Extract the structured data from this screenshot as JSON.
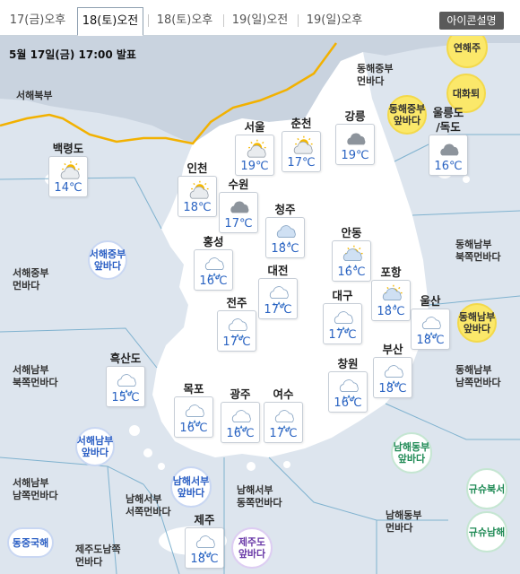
{
  "tabs": [
    {
      "label": "17(금)오후",
      "active": false
    },
    {
      "label": "18(토)오전",
      "active": true
    },
    {
      "label": "18(토)오후",
      "active": false
    },
    {
      "label": "19(일)오전",
      "active": false
    },
    {
      "label": "19(일)오후",
      "active": false
    }
  ],
  "icon_legend_label": "아이콘설명",
  "announcement": "5월 17일(금) 17:00 발표",
  "sea_labels": [
    {
      "id": "seohae-bukbu",
      "text": "서해북부"
    },
    {
      "id": "seohae-jungbu-bukjjok",
      "text": "서해중부\n먼바다"
    },
    {
      "id": "seohae-nambu-bukjjok",
      "text": "서해남부\n북쪽먼바다"
    },
    {
      "id": "seohae-nambu-namjjok",
      "text": "서해남부\n남쪽먼바다"
    },
    {
      "id": "namhae-seobu-seojjok",
      "text": "남해서부\n서쪽먼바다"
    },
    {
      "id": "namhae-seobu-dongjjok",
      "text": "남해서부\n동쪽먼바다"
    },
    {
      "id": "jeju-namjjok",
      "text": "제주도남쪽\n먼바다"
    },
    {
      "id": "namhae-dongbu-meon",
      "text": "남해동부\n먼바다"
    },
    {
      "id": "donghae-jungbu-meon",
      "text": "동해중부\n먼바다"
    },
    {
      "id": "donghae-nambu-bukjjok",
      "text": "동해남부\n북쪽먼바다"
    },
    {
      "id": "donghae-nambu-namjjok",
      "text": "동해남부\n남쪽먼바다"
    }
  ],
  "sea_circles": [
    {
      "id": "yeonhaeju",
      "text": "연해주",
      "color": "yellow"
    },
    {
      "id": "daehwatoe",
      "text": "대화퇴",
      "color": "yellow"
    },
    {
      "id": "donghae-jungbu-anbada",
      "text": "동해중부\n앞바다",
      "color": "yellow"
    },
    {
      "id": "donghae-nambu-anbada",
      "text": "동해남부\n앞바다",
      "color": "yellow"
    },
    {
      "id": "seohae-jungbu-anbada",
      "text": "서해중부\n앞바다",
      "color": "blue"
    },
    {
      "id": "seohae-nambu-anbada",
      "text": "서해남부\n앞바다",
      "color": "blue"
    },
    {
      "id": "namhae-seobu-anbada",
      "text": "남해서부\n앞바다",
      "color": "blue"
    },
    {
      "id": "dongjunggukhae",
      "text": "동중국해",
      "color": "blue"
    },
    {
      "id": "namhae-dongbu-anbada",
      "text": "남해동부\n앞바다",
      "color": "green"
    },
    {
      "id": "kyushu-bukseo",
      "text": "규슈북서",
      "color": "green"
    },
    {
      "id": "kyushu-namhae",
      "text": "규슈남해",
      "color": "green"
    },
    {
      "id": "jeju-anbada",
      "text": "제주도\n앞바다",
      "color": "purple"
    }
  ],
  "stations": [
    {
      "id": "baengnyeongdo",
      "name": "백령도",
      "temp": "14℃",
      "icon": "partly-cloudy-icon"
    },
    {
      "id": "seoul",
      "name": "서울",
      "temp": "19℃",
      "icon": "partly-cloudy-icon"
    },
    {
      "id": "chuncheon",
      "name": "춘천",
      "temp": "17℃",
      "icon": "partly-cloudy-icon"
    },
    {
      "id": "gangneung",
      "name": "강릉",
      "temp": "19℃",
      "icon": "cloudy-icon"
    },
    {
      "id": "ulleungdo",
      "name": "울릉도\n/독도",
      "temp": "16℃",
      "icon": "cloudy-icon"
    },
    {
      "id": "incheon",
      "name": "인천",
      "temp": "18℃",
      "icon": "partly-cloudy-icon"
    },
    {
      "id": "suwon",
      "name": "수원",
      "temp": "17℃",
      "icon": "cloudy-icon"
    },
    {
      "id": "cheongju",
      "name": "청주",
      "temp": "18℃",
      "icon": "cloudy-rain-icon"
    },
    {
      "id": "andong",
      "name": "안동",
      "temp": "16℃",
      "icon": "sun-rain-icon"
    },
    {
      "id": "hongseong",
      "name": "홍성",
      "temp": "16℃",
      "icon": "rain-icon"
    },
    {
      "id": "daejeon",
      "name": "대전",
      "temp": "17℃",
      "icon": "rain-icon"
    },
    {
      "id": "pohang",
      "name": "포항",
      "temp": "18℃",
      "icon": "sun-rain-icon"
    },
    {
      "id": "jeonju",
      "name": "전주",
      "temp": "17℃",
      "icon": "rain-icon"
    },
    {
      "id": "daegu",
      "name": "대구",
      "temp": "17℃",
      "icon": "rain-icon"
    },
    {
      "id": "ulsan",
      "name": "울산",
      "temp": "18℃",
      "icon": "rain-icon"
    },
    {
      "id": "heuksando",
      "name": "흑산도",
      "temp": "15℃",
      "icon": "rain-icon"
    },
    {
      "id": "busan",
      "name": "부산",
      "temp": "18℃",
      "icon": "rain-icon"
    },
    {
      "id": "changwon",
      "name": "창원",
      "temp": "16℃",
      "icon": "rain-icon"
    },
    {
      "id": "gwangju",
      "name": "광주",
      "temp": "16℃",
      "icon": "rain-icon"
    },
    {
      "id": "yeosu",
      "name": "여수",
      "temp": "17℃",
      "icon": "rain-icon"
    },
    {
      "id": "mokpo",
      "name": "목포",
      "temp": "16℃",
      "icon": "rain-icon"
    },
    {
      "id": "jeju",
      "name": "제주",
      "temp": "18℃",
      "icon": "rain-icon"
    }
  ],
  "colors": {
    "sea": "#dde5ee",
    "land": "#ffffff",
    "north": "#c9d3df",
    "boundary_line": "#f2b100",
    "temp_text": "#2a63c2",
    "zone_lines": "#7fb2cf"
  }
}
